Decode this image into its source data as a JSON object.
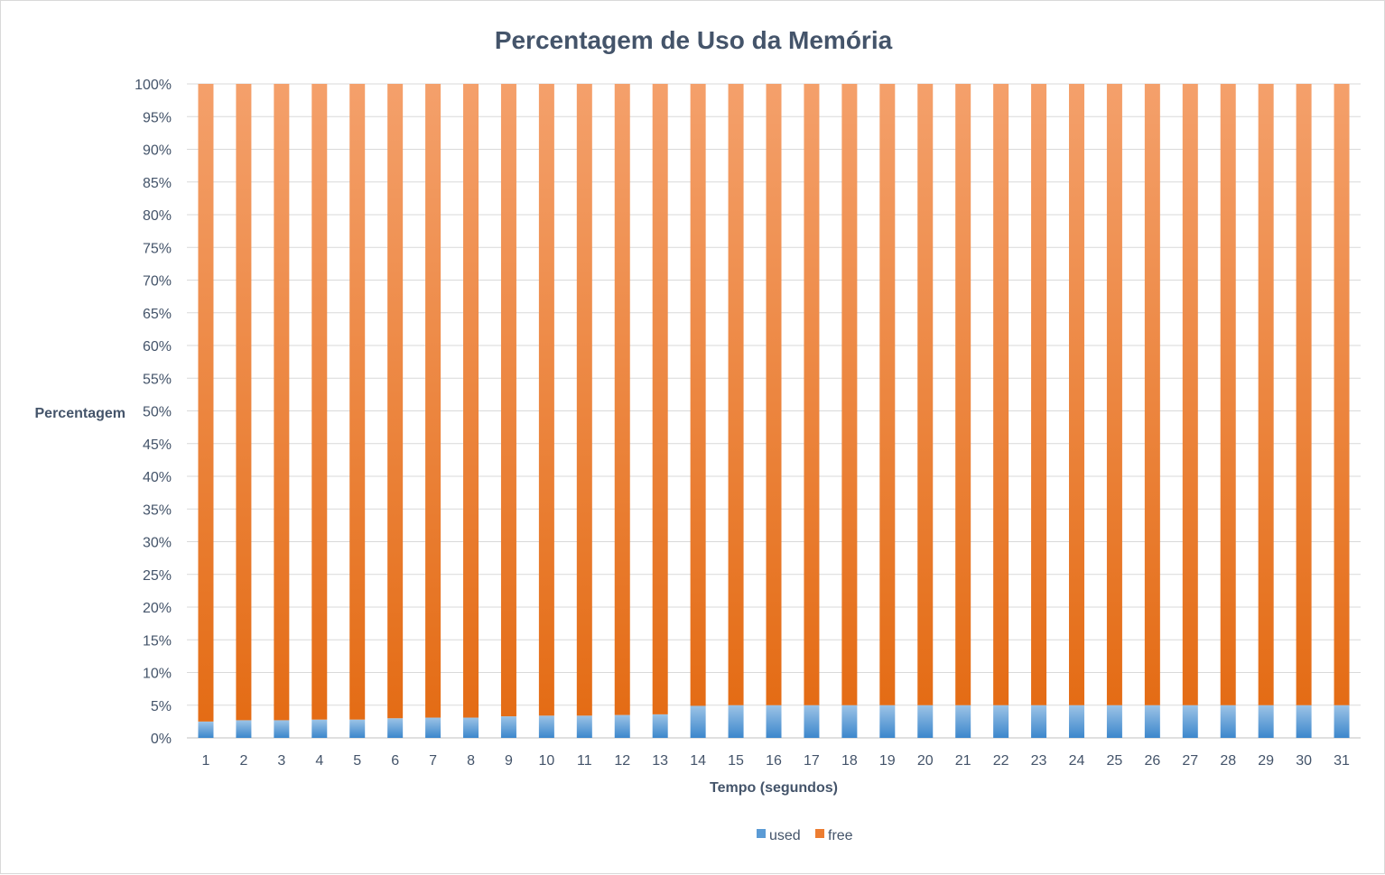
{
  "chart_data": {
    "type": "bar",
    "stacked": "percent",
    "title": "Percentagem de Uso da Memória",
    "xlabel": "Tempo (segundos)",
    "ylabel": "Percentagem",
    "ylim": [
      0,
      100
    ],
    "ytick_step": 5,
    "ytick_format": "{v}%",
    "grid": true,
    "legend_position": "bottom",
    "categories": [
      "1",
      "2",
      "3",
      "4",
      "5",
      "6",
      "7",
      "8",
      "9",
      "10",
      "11",
      "12",
      "13",
      "14",
      "15",
      "16",
      "17",
      "18",
      "19",
      "20",
      "21",
      "22",
      "23",
      "24",
      "25",
      "26",
      "27",
      "28",
      "29",
      "30",
      "31"
    ],
    "series": [
      {
        "name": "used",
        "color": "#5b9bd5",
        "values": [
          2.5,
          2.7,
          2.7,
          2.8,
          2.8,
          3.0,
          3.1,
          3.1,
          3.3,
          3.4,
          3.4,
          3.5,
          3.6,
          4.9,
          5.0,
          5.0,
          5.0,
          5.0,
          5.0,
          5.0,
          5.0,
          5.0,
          5.0,
          5.0,
          5.0,
          5.0,
          5.0,
          5.0,
          5.0,
          5.0,
          5.0
        ]
      },
      {
        "name": "free",
        "color": "#ed7d31",
        "values": [
          97.5,
          97.3,
          97.3,
          97.2,
          97.2,
          97.0,
          96.9,
          96.9,
          96.7,
          96.6,
          96.6,
          96.5,
          96.4,
          95.1,
          95.0,
          95.0,
          95.0,
          95.0,
          95.0,
          95.0,
          95.0,
          95.0,
          95.0,
          95.0,
          95.0,
          95.0,
          95.0,
          95.0,
          95.0,
          95.0,
          95.0
        ]
      }
    ]
  }
}
